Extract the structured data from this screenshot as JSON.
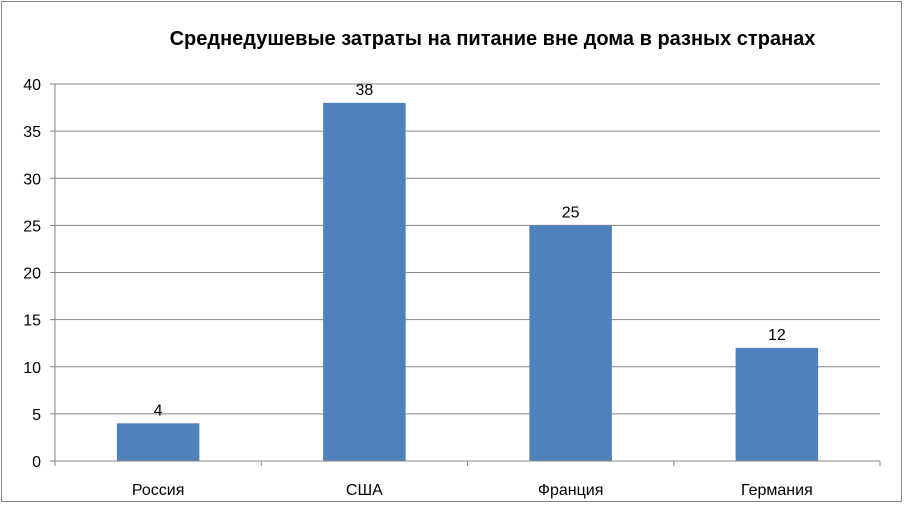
{
  "chart_data": {
    "type": "bar",
    "title": "Среднедушевые затраты на питание вне дома в разных странах",
    "categories": [
      "Россия",
      "США",
      "Франция",
      "Германия"
    ],
    "values": [
      4,
      38,
      25,
      12
    ],
    "ylim": [
      0,
      40
    ],
    "yticks": [
      0,
      5,
      10,
      15,
      20,
      25,
      30,
      35,
      40
    ],
    "grid": true,
    "data_labels": true,
    "bar_color": "#4F81BD"
  }
}
